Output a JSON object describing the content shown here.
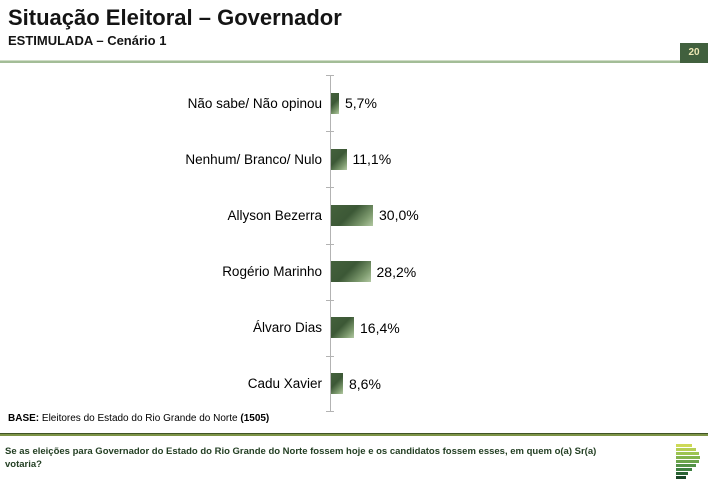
{
  "header": {
    "title": "Situação Eleitoral – Governador",
    "subtitle": "ESTIMULADA – Cenário 1",
    "page_number": "20"
  },
  "chart_data": {
    "type": "bar",
    "orientation": "horizontal",
    "title": "Situação Eleitoral – Governador — ESTIMULADA – Cenário 1",
    "categories": [
      "Não sabe/ Não opinou",
      "Nenhum/ Branco/ Nulo",
      "Allyson Bezerra",
      "Rogério Marinho",
      "Álvaro Dias",
      "Cadu Xavier"
    ],
    "values": [
      5.7,
      11.1,
      30.0,
      28.2,
      16.4,
      8.6
    ],
    "value_labels": [
      "5,7%",
      "11,1%",
      "30,0%",
      "28,2%",
      "16,4%",
      "8,6%"
    ],
    "xlabel": "",
    "ylabel": "",
    "grid": false,
    "legend": false,
    "bar_color_dark": "#3c5836",
    "bar_color_light": "#b2c8a2"
  },
  "footer": {
    "base_label": "BASE:",
    "base_text": " Eleitores do Estado do Rio Grande do Norte ",
    "base_count": "(1505)",
    "question_line1": "Se as eleições para Governador do Estado do Rio Grande do Norte fossem hoje e os candidatos fossem esses, em quem o(a) Sr(a)",
    "question_line2": "votaria?"
  },
  "colors": {
    "header_rule": "#a3bd97",
    "divider_rule": "#7d9447",
    "page_badge_bg": "#41603e",
    "page_badge_text": "#ece7b4",
    "axis": "#b3b3b3",
    "question_text": "#233f23"
  },
  "logo": {
    "name": "green-bars-brand-logo",
    "bar_colors": [
      "#cdd957",
      "#b5cf54",
      "#9cc450",
      "#83b44c",
      "#6ba44b",
      "#539247",
      "#3d7f3f",
      "#2a6334",
      "#1a4727"
    ]
  }
}
